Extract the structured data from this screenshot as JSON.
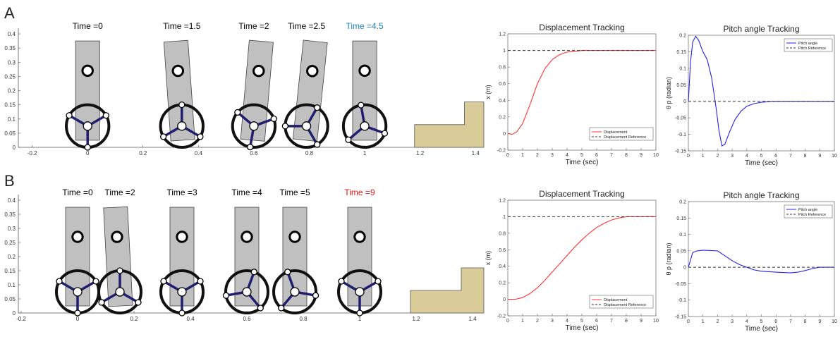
{
  "panels": [
    {
      "letter": "A",
      "snapshot_times": [
        {
          "label": "Time =0",
          "color": "#000000"
        },
        {
          "label": "Time =1.5",
          "color": "#000000"
        },
        {
          "label": "Time =2",
          "color": "#000000"
        },
        {
          "label": "Time =2.5",
          "color": "#000000"
        },
        {
          "label": "Time =4.5",
          "color": "#1a7fc1"
        }
      ],
      "snapshots": [
        {
          "x": 0.0,
          "tilt": 0,
          "wheel_rot": 90
        },
        {
          "x": 0.34,
          "tilt": -4,
          "wheel_rot": 30
        },
        {
          "x": 0.6,
          "tilt": 5,
          "wheel_rot": -20
        },
        {
          "x": 0.79,
          "tilt": 6,
          "wheel_rot": -60
        },
        {
          "x": 1.0,
          "tilt": 0,
          "wheel_rot": -100
        }
      ]
    },
    {
      "letter": "B",
      "snapshot_times": [
        {
          "label": "Time =0",
          "color": "#000000"
        },
        {
          "label": "Time =2",
          "color": "#000000"
        },
        {
          "label": "Time =3",
          "color": "#000000"
        },
        {
          "label": "Time =4",
          "color": "#000000"
        },
        {
          "label": "Time =5",
          "color": "#000000"
        },
        {
          "label": "Time =9",
          "color": "#e41a1c"
        }
      ],
      "snapshots": [
        {
          "x": 0.0,
          "tilt": 0,
          "wheel_rot": 90
        },
        {
          "x": 0.15,
          "tilt": -3,
          "wheel_rot": 30
        },
        {
          "x": 0.37,
          "tilt": 0,
          "wheel_rot": -30
        },
        {
          "x": 0.6,
          "tilt": 0,
          "wheel_rot": -70
        },
        {
          "x": 0.77,
          "tilt": 0,
          "wheel_rot": -110
        },
        {
          "x": 1.0,
          "tilt": 0,
          "wheel_rot": -150
        }
      ]
    }
  ],
  "colors": {
    "body_fill": "#c0c0c0",
    "step_fill": "#d9cc99",
    "spoke": "#1f1f6e",
    "disp_line": "#ff3333",
    "pitch_line": "#2323e6"
  },
  "chart_data": [
    {
      "type": "scene",
      "panel": "A",
      "xlim": [
        -0.25,
        1.43
      ],
      "ylim": [
        0,
        0.42
      ],
      "xticks": [
        "-0.2",
        "0",
        "0.2",
        "0.4",
        "0.6",
        "0.8",
        "1",
        "1.2",
        "1.4"
      ],
      "yticks": [
        "0",
        "0.05",
        "0.1",
        "0.15",
        "0.2",
        "0.25",
        "0.3",
        "0.35",
        "0.4"
      ],
      "step_profile": [
        [
          1.18,
          0
        ],
        [
          1.18,
          0.08
        ],
        [
          1.36,
          0.08
        ],
        [
          1.36,
          0.16
        ],
        [
          1.43,
          0.16
        ],
        [
          1.43,
          0
        ]
      ]
    },
    {
      "type": "line",
      "panel": "A",
      "title": "Displacement Tracking",
      "xlabel": "Time (sec)",
      "ylabel": "x (m)",
      "xlim": [
        0,
        10
      ],
      "ylim": [
        -0.2,
        1.2
      ],
      "xticks": [
        "0",
        "1",
        "2",
        "3",
        "4",
        "5",
        "6",
        "7",
        "8",
        "9",
        "10"
      ],
      "yticks": [
        "-0.2",
        "0",
        "0.2",
        "0.4",
        "0.6",
        "0.8",
        "1",
        "1.2"
      ],
      "legend": "bottom-right",
      "series": [
        {
          "name": "Displacement",
          "style": "solid",
          "x": [
            0,
            0.3,
            0.6,
            1.0,
            1.5,
            2.0,
            2.5,
            3.0,
            3.5,
            4.0,
            4.5,
            5.0,
            6.0,
            7.0,
            8.0,
            9.0,
            10.0
          ],
          "y": [
            0,
            -0.01,
            0.02,
            0.12,
            0.35,
            0.6,
            0.78,
            0.89,
            0.95,
            0.98,
            0.99,
            1.0,
            1.0,
            1.0,
            1.0,
            1.0,
            1.0
          ]
        },
        {
          "name": "Displacement Reference",
          "style": "dashed",
          "x": [
            0,
            10
          ],
          "y": [
            1,
            1
          ]
        }
      ]
    },
    {
      "type": "line",
      "panel": "A",
      "title": "Pitch angle Tracking",
      "xlabel": "Time (sec)",
      "ylabel": "θ p (radian)",
      "xlim": [
        0,
        10
      ],
      "ylim": [
        -0.15,
        0.2
      ],
      "xticks": [
        "0",
        "1",
        "2",
        "3",
        "4",
        "5",
        "6",
        "7",
        "8",
        "9",
        "10"
      ],
      "yticks": [
        "-0.15",
        "-0.1",
        "-0.05",
        "0",
        "0.05",
        "0.1",
        "0.15",
        "0.2"
      ],
      "legend": "top-right",
      "series": [
        {
          "name": "Pitch angle",
          "style": "solid",
          "x": [
            0,
            0.15,
            0.3,
            0.5,
            0.7,
            1.0,
            1.3,
            1.6,
            1.9,
            2.1,
            2.3,
            2.5,
            2.8,
            3.2,
            3.6,
            4.0,
            4.5,
            5.0,
            5.5,
            6.0,
            7.0,
            8.0,
            10.0
          ],
          "y": [
            0,
            0.12,
            0.18,
            0.197,
            0.185,
            0.15,
            0.125,
            0.07,
            -0.02,
            -0.09,
            -0.135,
            -0.13,
            -0.095,
            -0.055,
            -0.03,
            -0.015,
            -0.007,
            -0.003,
            -0.001,
            0,
            0,
            0,
            0
          ]
        },
        {
          "name": "Pitch Reference",
          "style": "dashed",
          "x": [
            0,
            10
          ],
          "y": [
            0,
            0
          ]
        }
      ]
    },
    {
      "type": "scene",
      "panel": "B",
      "xlim": [
        -0.21,
        1.44
      ],
      "ylim": [
        0,
        0.42
      ],
      "xticks": [
        "-0.2",
        "0",
        "0.2",
        "0.4",
        "0.6",
        "0.8",
        "1",
        "1.2",
        "1.4"
      ],
      "yticks": [
        "0",
        "0.05",
        "0.1",
        "0.15",
        "0.2",
        "0.25",
        "0.3",
        "0.35",
        "0.4"
      ],
      "step_profile": [
        [
          1.18,
          0
        ],
        [
          1.18,
          0.08
        ],
        [
          1.36,
          0.08
        ],
        [
          1.36,
          0.16
        ],
        [
          1.44,
          0.16
        ],
        [
          1.44,
          0
        ]
      ]
    },
    {
      "type": "line",
      "panel": "B",
      "title": "Displacement Tracking",
      "xlabel": "Time (sec)",
      "ylabel": "x (m)",
      "xlim": [
        0,
        10
      ],
      "ylim": [
        -0.2,
        1.2
      ],
      "xticks": [
        "0",
        "1",
        "2",
        "3",
        "4",
        "5",
        "6",
        "7",
        "8",
        "9",
        "10"
      ],
      "yticks": [
        "-0.2",
        "0",
        "0.2",
        "0.4",
        "0.6",
        "0.8",
        "1",
        "1.2"
      ],
      "legend": "bottom-right",
      "series": [
        {
          "name": "Displacement",
          "style": "solid",
          "x": [
            0,
            0.5,
            1.0,
            1.5,
            2.0,
            2.5,
            3.0,
            3.5,
            4.0,
            4.5,
            5.0,
            5.5,
            6.0,
            6.5,
            7.0,
            7.5,
            8.0,
            9.0,
            10.0
          ],
          "y": [
            0,
            0.0,
            0.02,
            0.07,
            0.14,
            0.23,
            0.33,
            0.43,
            0.53,
            0.63,
            0.72,
            0.8,
            0.87,
            0.92,
            0.96,
            0.985,
            1.0,
            1.0,
            1.0
          ]
        },
        {
          "name": "Displacement Reference",
          "style": "dashed",
          "x": [
            0,
            10
          ],
          "y": [
            1,
            1
          ]
        }
      ]
    },
    {
      "type": "line",
      "panel": "B",
      "title": "Pitch angle Tracking",
      "xlabel": "Time (sec)",
      "ylabel": "θ p (radian)",
      "xlim": [
        0,
        10
      ],
      "ylim": [
        -0.15,
        0.2
      ],
      "xticks": [
        "0",
        "1",
        "2",
        "3",
        "4",
        "5",
        "6",
        "7",
        "8",
        "9",
        "10"
      ],
      "yticks": [
        "-0.15",
        "-0.1",
        "-0.05",
        "0",
        "0.05",
        "0.1",
        "0.15",
        "0.2"
      ],
      "legend": "top-right",
      "series": [
        {
          "name": "Pitch angle",
          "style": "solid",
          "x": [
            0,
            0.3,
            0.6,
            1.0,
            1.5,
            2.0,
            2.5,
            3.0,
            3.5,
            4.0,
            4.5,
            5.0,
            6.0,
            6.5,
            7.0,
            7.5,
            8.0,
            8.5,
            9.0,
            10.0
          ],
          "y": [
            0,
            0.045,
            0.05,
            0.052,
            0.051,
            0.05,
            0.035,
            0.02,
            0.008,
            0.0,
            -0.008,
            -0.012,
            -0.015,
            -0.016,
            -0.017,
            -0.015,
            -0.01,
            -0.004,
            0.0,
            0.0
          ]
        },
        {
          "name": "Pitch Reference",
          "style": "dashed",
          "x": [
            0,
            10
          ],
          "y": [
            0,
            0
          ]
        }
      ]
    }
  ]
}
